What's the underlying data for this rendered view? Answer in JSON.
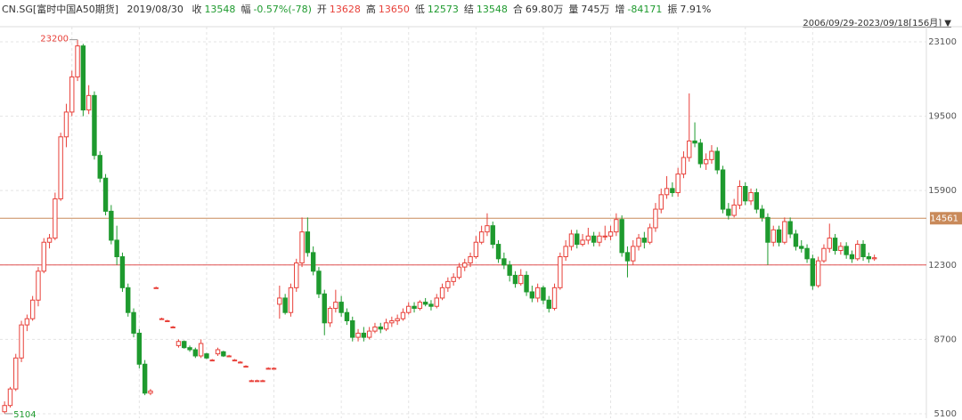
{
  "chart_data": {
    "type": "candlestick",
    "header": {
      "symbol": "CN.SG[富时中国A50期货]",
      "date": "2019/08/30",
      "fields": [
        {
          "label": "收",
          "value": "13548",
          "color": "#1e9a2e"
        },
        {
          "label": "幅",
          "value": "-0.57%(-78)",
          "color": "#1e9a2e"
        },
        {
          "label": "开",
          "value": "13628",
          "color": "#e8413a"
        },
        {
          "label": "高",
          "value": "13650",
          "color": "#e8413a"
        },
        {
          "label": "低",
          "value": "12573",
          "color": "#1e9a2e"
        },
        {
          "label": "结",
          "value": "13548",
          "color": "#1e9a2e"
        },
        {
          "label": "合",
          "value": "69.80万",
          "color": "#333333"
        },
        {
          "label": "量",
          "value": "745万",
          "color": "#333333"
        },
        {
          "label": "增",
          "value": "-84171",
          "color": "#1e9a2e"
        },
        {
          "label": "振",
          "value": "7.91%",
          "color": "#333333"
        }
      ]
    },
    "date_range": "2006/09/29-2023/09/18[156月]",
    "ylim": [
      4885,
      23830
    ],
    "yticks": [
      5100,
      8700,
      12300,
      15900,
      19500,
      23100
    ],
    "grid": true,
    "up_color": "#e8413a",
    "down_color": "#1e9a2e",
    "price_line": {
      "value": 14561,
      "color": "#c98a5a"
    },
    "ref_line": {
      "value": 12300,
      "color": "#e05050"
    },
    "high_mark": 13,
    "low_mark": 0,
    "candles": [
      [
        5200,
        5700,
        5104,
        5500
      ],
      [
        5500,
        6400,
        5400,
        6300
      ],
      [
        6300,
        8000,
        6200,
        7800
      ],
      [
        7800,
        9600,
        7600,
        9400
      ],
      [
        9400,
        9900,
        9100,
        9700
      ],
      [
        9700,
        10800,
        9600,
        10600
      ],
      [
        10600,
        12200,
        10300,
        12000
      ],
      [
        12000,
        13600,
        11900,
        13400
      ],
      [
        13400,
        13800,
        13100,
        13600
      ],
      [
        13600,
        15800,
        13500,
        15500
      ],
      [
        15500,
        18700,
        15400,
        18500
      ],
      [
        18500,
        20100,
        18000,
        19700
      ],
      [
        19700,
        21700,
        19500,
        21400
      ],
      [
        21400,
        23200,
        21200,
        22900
      ],
      [
        22900,
        23000,
        19500,
        19800
      ],
      [
        19800,
        21000,
        19600,
        20500
      ],
      [
        20500,
        20700,
        17400,
        17600
      ],
      [
        17600,
        17800,
        16300,
        16500
      ],
      [
        16500,
        16700,
        14700,
        14900
      ],
      [
        14900,
        15200,
        13300,
        13500
      ],
      [
        13500,
        14200,
        12300,
        12700
      ],
      [
        12700,
        12900,
        11000,
        11200
      ],
      [
        11200,
        11400,
        9800,
        10000
      ],
      [
        10000,
        10200,
        8800,
        9000
      ],
      [
        9000,
        9200,
        7300,
        7500
      ],
      [
        7500,
        7700,
        6000,
        6100
      ],
      [
        6100,
        6300,
        6000,
        6200
      ],
      [
        11200,
        11250,
        11150,
        11200
      ],
      [
        9700,
        9750,
        9650,
        9700
      ],
      [
        9600,
        9650,
        9550,
        9600
      ],
      [
        9300,
        9350,
        9250,
        9300
      ],
      [
        8400,
        8700,
        8300,
        8600
      ],
      [
        8600,
        8650,
        8250,
        8300
      ],
      [
        8300,
        8400,
        8100,
        8200
      ],
      [
        8200,
        8300,
        7800,
        7900
      ],
      [
        7900,
        8700,
        7800,
        8500
      ],
      [
        8000,
        8050,
        7750,
        7800
      ],
      [
        7700,
        7750,
        7650,
        7700
      ],
      [
        8000,
        8300,
        7900,
        8200
      ],
      [
        8100,
        8150,
        7850,
        7900
      ],
      [
        7900,
        7950,
        7850,
        7900
      ],
      [
        7700,
        7750,
        7650,
        7700
      ],
      [
        7600,
        7650,
        7550,
        7600
      ],
      [
        7400,
        7450,
        7350,
        7400
      ],
      [
        6700,
        6750,
        6650,
        6700
      ],
      [
        6700,
        6750,
        6650,
        6700
      ],
      [
        6700,
        6750,
        6650,
        6700
      ],
      [
        7300,
        7350,
        7250,
        7300
      ],
      [
        7300,
        7350,
        7250,
        7300
      ],
      [
        10400,
        11300,
        9700,
        10700
      ],
      [
        10700,
        10900,
        9900,
        10000
      ],
      [
        10000,
        11400,
        9800,
        11200
      ],
      [
        11200,
        12600,
        11000,
        12400
      ],
      [
        12400,
        14600,
        12200,
        13900
      ],
      [
        13900,
        14600,
        12700,
        12900
      ],
      [
        12900,
        13200,
        11800,
        12000
      ],
      [
        12000,
        12200,
        10700,
        10900
      ],
      [
        10900,
        11100,
        8900,
        9500
      ],
      [
        9500,
        10300,
        9300,
        10200
      ],
      [
        10200,
        11100,
        10000,
        10500
      ],
      [
        10500,
        10800,
        9800,
        10000
      ],
      [
        10000,
        10200,
        9400,
        9600
      ],
      [
        9600,
        9800,
        8600,
        8800
      ],
      [
        8800,
        9200,
        8600,
        9000
      ],
      [
        9000,
        9300,
        8600,
        8800
      ],
      [
        8800,
        9300,
        8700,
        9100
      ],
      [
        9100,
        9500,
        9000,
        9300
      ],
      [
        9300,
        9500,
        9000,
        9200
      ],
      [
        9200,
        9700,
        9100,
        9500
      ],
      [
        9500,
        9800,
        9300,
        9600
      ],
      [
        9600,
        9900,
        9400,
        9700
      ],
      [
        9700,
        10200,
        9600,
        10000
      ],
      [
        10000,
        10500,
        9900,
        10300
      ],
      [
        10300,
        10500,
        10000,
        10200
      ],
      [
        10200,
        10600,
        10100,
        10500
      ],
      [
        10500,
        10700,
        10300,
        10400
      ],
      [
        10400,
        10600,
        10100,
        10300
      ],
      [
        10300,
        10900,
        10200,
        10700
      ],
      [
        10700,
        11400,
        10600,
        11200
      ],
      [
        11200,
        11700,
        11000,
        11500
      ],
      [
        11500,
        11900,
        11300,
        11700
      ],
      [
        11700,
        12400,
        11600,
        12200
      ],
      [
        12200,
        12600,
        12000,
        12400
      ],
      [
        12400,
        12900,
        12200,
        12700
      ],
      [
        12700,
        13700,
        12600,
        13400
      ],
      [
        13400,
        14200,
        13300,
        13900
      ],
      [
        13900,
        14800,
        13700,
        14200
      ],
      [
        14200,
        14400,
        13100,
        13300
      ],
      [
        13300,
        13500,
        12400,
        12600
      ],
      [
        12600,
        12900,
        12100,
        12300
      ],
      [
        12300,
        12500,
        11500,
        11800
      ],
      [
        11800,
        12000,
        11200,
        11400
      ],
      [
        11400,
        12100,
        11300,
        11800
      ],
      [
        11800,
        12000,
        10800,
        11000
      ],
      [
        11000,
        11300,
        10500,
        10700
      ],
      [
        10700,
        11400,
        10500,
        11200
      ],
      [
        11200,
        11300,
        10400,
        10600
      ],
      [
        10600,
        10800,
        10000,
        10200
      ],
      [
        10200,
        11400,
        10100,
        11200
      ],
      [
        11200,
        12900,
        11100,
        12700
      ],
      [
        12700,
        13500,
        12500,
        13200
      ],
      [
        13200,
        14000,
        13000,
        13800
      ],
      [
        13800,
        14000,
        13100,
        13300
      ],
      [
        13300,
        13800,
        13200,
        13500
      ],
      [
        13500,
        14100,
        13300,
        13700
      ],
      [
        13700,
        13900,
        13200,
        13400
      ],
      [
        13400,
        13900,
        13200,
        13700
      ],
      [
        13700,
        14200,
        13500,
        13700
      ],
      [
        13700,
        14200,
        13500,
        13900
      ],
      [
        13900,
        14800,
        13700,
        14500
      ],
      [
        14500,
        14700,
        12700,
        12900
      ],
      [
        12900,
        13200,
        11700,
        12500
      ],
      [
        12500,
        13500,
        12300,
        13200
      ],
      [
        13200,
        13800,
        13000,
        13600
      ],
      [
        13600,
        13900,
        13100,
        13400
      ],
      [
        13400,
        14300,
        13300,
        14100
      ],
      [
        14100,
        15300,
        13900,
        15000
      ],
      [
        15000,
        16000,
        14800,
        15700
      ],
      [
        15700,
        16600,
        15500,
        16000
      ],
      [
        16000,
        16300,
        15600,
        15800
      ],
      [
        15800,
        17000,
        15600,
        16700
      ],
      [
        16700,
        17800,
        16500,
        17500
      ],
      [
        17500,
        20600,
        17300,
        18300
      ],
      [
        18300,
        19200,
        18000,
        18200
      ],
      [
        18200,
        18400,
        17000,
        17200
      ],
      [
        17200,
        17700,
        16900,
        17400
      ],
      [
        17400,
        18100,
        17200,
        17800
      ],
      [
        17800,
        18000,
        16700,
        16900
      ],
      [
        16900,
        17100,
        14800,
        15000
      ],
      [
        15000,
        15300,
        14500,
        14700
      ],
      [
        14700,
        15500,
        14600,
        15200
      ],
      [
        15200,
        16400,
        15000,
        16100
      ],
      [
        16100,
        16300,
        15200,
        15400
      ],
      [
        15400,
        16000,
        15200,
        15800
      ],
      [
        15800,
        16000,
        14800,
        15000
      ],
      [
        15000,
        15200,
        14400,
        14600
      ],
      [
        14600,
        14800,
        12300,
        13400
      ],
      [
        13400,
        14200,
        13200,
        14000
      ],
      [
        14000,
        14200,
        13200,
        13400
      ],
      [
        13400,
        14600,
        13300,
        14400
      ],
      [
        14400,
        14600,
        13600,
        13800
      ],
      [
        13800,
        14000,
        13000,
        13200
      ],
      [
        13200,
        13500,
        12900,
        13100
      ],
      [
        13100,
        13300,
        12400,
        12600
      ],
      [
        12600,
        12800,
        11100,
        11300
      ],
      [
        11300,
        12700,
        11200,
        12500
      ],
      [
        12500,
        13300,
        12400,
        13100
      ],
      [
        13100,
        14300,
        12900,
        13600
      ],
      [
        13600,
        13800,
        12800,
        13000
      ],
      [
        13000,
        13400,
        12800,
        13200
      ],
      [
        13200,
        13400,
        12600,
        12800
      ],
      [
        12800,
        13000,
        12400,
        12600
      ],
      [
        12600,
        13500,
        12500,
        13300
      ],
      [
        13300,
        13500,
        12500,
        12700
      ],
      [
        12700,
        12900,
        12400,
        12600
      ],
      [
        12600,
        12800,
        12500,
        12650
      ]
    ]
  }
}
